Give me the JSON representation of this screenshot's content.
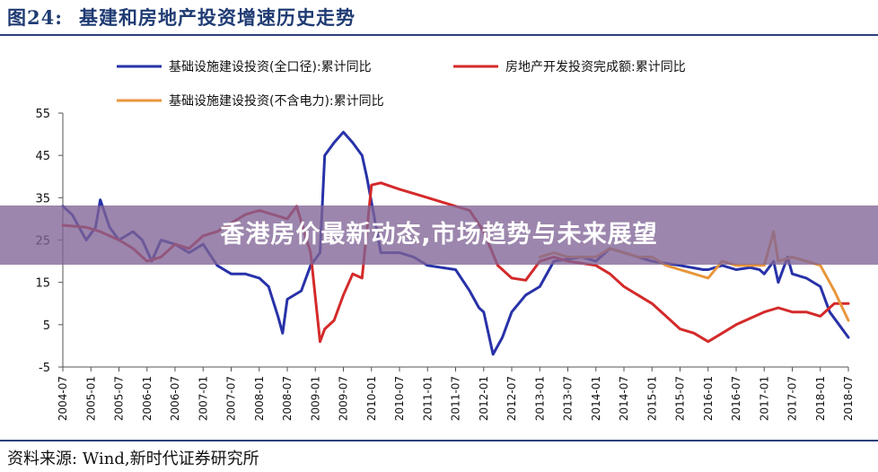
{
  "figure": {
    "number": "图24:",
    "title": "基建和房地产投资增速历史走势",
    "source": "资料来源:  Wind,新时代证券研究所"
  },
  "overlay": {
    "headline": "香港房价最新动态,市场趋势与未来展望"
  },
  "chart_data": {
    "type": "line",
    "title": "基建和房地产投资增速历史走势",
    "xlabel": "",
    "ylabel": "",
    "ylim": [
      -5,
      55
    ],
    "yticks": [
      -5,
      5,
      15,
      25,
      35,
      45,
      55
    ],
    "xticks": [
      "2004-07",
      "2005-01",
      "2005-07",
      "2006-01",
      "2006-07",
      "2007-01",
      "2007-07",
      "2008-01",
      "2008-07",
      "2009-01",
      "2009-07",
      "2010-01",
      "2010-07",
      "2011-01",
      "2011-07",
      "2012-01",
      "2012-07",
      "2013-01",
      "2013-07",
      "2014-01",
      "2014-07",
      "2015-01",
      "2015-07",
      "2016-01",
      "2016-07",
      "2017-01",
      "2017-07",
      "2018-01",
      "2018-07"
    ],
    "grid": false,
    "legend_position": "top",
    "series": [
      {
        "name": "基础设施建设投资(全口径):累计同比",
        "color": "#2832a8",
        "points": [
          [
            "2004-07",
            33
          ],
          [
            "2004-09",
            31
          ],
          [
            "2004-12",
            25
          ],
          [
            "2005-02",
            28
          ],
          [
            "2005-03",
            34.5
          ],
          [
            "2005-05",
            28
          ],
          [
            "2005-07",
            25
          ],
          [
            "2005-10",
            27
          ],
          [
            "2005-12",
            25
          ],
          [
            "2006-02",
            20
          ],
          [
            "2006-04",
            25
          ],
          [
            "2006-07",
            24
          ],
          [
            "2006-10",
            22
          ],
          [
            "2007-01",
            24
          ],
          [
            "2007-04",
            19
          ],
          [
            "2007-07",
            17
          ],
          [
            "2007-10",
            17
          ],
          [
            "2008-01",
            16
          ],
          [
            "2008-03",
            14
          ],
          [
            "2008-05",
            7
          ],
          [
            "2008-06",
            3
          ],
          [
            "2008-07",
            11
          ],
          [
            "2008-10",
            13
          ],
          [
            "2008-12",
            19
          ],
          [
            "2009-02",
            22
          ],
          [
            "2009-03",
            45
          ],
          [
            "2009-05",
            48
          ],
          [
            "2009-07",
            50.5
          ],
          [
            "2009-09",
            48
          ],
          [
            "2009-11",
            45
          ],
          [
            "2009-12",
            40
          ],
          [
            "2010-02",
            28
          ],
          [
            "2010-03",
            22
          ],
          [
            "2010-07",
            22
          ],
          [
            "2010-10",
            21
          ],
          [
            "2011-01",
            19
          ],
          [
            "2011-07",
            18
          ],
          [
            "2011-10",
            13
          ],
          [
            "2011-12",
            9
          ],
          [
            "2012-01",
            8
          ],
          [
            "2012-03",
            -2
          ],
          [
            "2012-05",
            2
          ],
          [
            "2012-07",
            8
          ],
          [
            "2012-10",
            12
          ],
          [
            "2013-01",
            14
          ],
          [
            "2013-04",
            20
          ],
          [
            "2013-07",
            20.5
          ],
          [
            "2013-10",
            21
          ],
          [
            "2014-01",
            20
          ],
          [
            "2014-04",
            23
          ],
          [
            "2014-07",
            22
          ],
          [
            "2014-10",
            21
          ],
          [
            "2015-01",
            20
          ],
          [
            "2015-07",
            19
          ],
          [
            "2015-12",
            18
          ],
          [
            "2016-01",
            18
          ],
          [
            "2016-04",
            19
          ],
          [
            "2016-07",
            18
          ],
          [
            "2016-10",
            18.5
          ],
          [
            "2016-12",
            18
          ],
          [
            "2017-01",
            17
          ],
          [
            "2017-03",
            20
          ],
          [
            "2017-04",
            15
          ],
          [
            "2017-06",
            21
          ],
          [
            "2017-07",
            17
          ],
          [
            "2017-10",
            16
          ],
          [
            "2018-01",
            14
          ],
          [
            "2018-03",
            8
          ],
          [
            "2018-05",
            5
          ],
          [
            "2018-07",
            2
          ]
        ]
      },
      {
        "name": "房地产开发投资完成额:累计同比",
        "color": "#d42a2a",
        "points": [
          [
            "2004-07",
            28.5
          ],
          [
            "2004-12",
            28
          ],
          [
            "2005-03",
            27
          ],
          [
            "2005-07",
            25
          ],
          [
            "2005-10",
            23
          ],
          [
            "2006-01",
            20
          ],
          [
            "2006-04",
            21
          ],
          [
            "2006-07",
            24
          ],
          [
            "2006-10",
            23
          ],
          [
            "2007-01",
            26
          ],
          [
            "2007-04",
            27
          ],
          [
            "2007-07",
            29
          ],
          [
            "2007-10",
            31
          ],
          [
            "2008-01",
            32
          ],
          [
            "2008-04",
            31
          ],
          [
            "2008-07",
            30
          ],
          [
            "2008-09",
            33
          ],
          [
            "2008-12",
            22
          ],
          [
            "2009-02",
            1
          ],
          [
            "2009-03",
            4
          ],
          [
            "2009-05",
            6
          ],
          [
            "2009-07",
            12
          ],
          [
            "2009-09",
            17
          ],
          [
            "2009-11",
            16
          ],
          [
            "2010-01",
            38
          ],
          [
            "2010-03",
            38.5
          ],
          [
            "2010-07",
            37
          ],
          [
            "2010-10",
            36
          ],
          [
            "2011-01",
            35
          ],
          [
            "2011-04",
            34
          ],
          [
            "2011-07",
            33
          ],
          [
            "2011-10",
            32
          ],
          [
            "2012-01",
            27
          ],
          [
            "2012-04",
            19
          ],
          [
            "2012-07",
            16
          ],
          [
            "2012-10",
            15.5
          ],
          [
            "2013-01",
            20
          ],
          [
            "2013-04",
            21
          ],
          [
            "2013-07",
            20
          ],
          [
            "2013-10",
            19.5
          ],
          [
            "2014-01",
            19
          ],
          [
            "2014-04",
            17
          ],
          [
            "2014-07",
            14
          ],
          [
            "2014-10",
            12
          ],
          [
            "2015-01",
            10
          ],
          [
            "2015-04",
            7
          ],
          [
            "2015-07",
            4
          ],
          [
            "2015-10",
            3
          ],
          [
            "2016-01",
            1
          ],
          [
            "2016-04",
            3
          ],
          [
            "2016-07",
            5
          ],
          [
            "2016-10",
            6.5
          ],
          [
            "2017-01",
            8
          ],
          [
            "2017-04",
            9
          ],
          [
            "2017-07",
            8
          ],
          [
            "2017-10",
            8
          ],
          [
            "2018-01",
            7
          ],
          [
            "2018-04",
            10
          ],
          [
            "2018-07",
            10
          ]
        ]
      },
      {
        "name": "基础设施建设投资(不含电力):累计同比",
        "color": "#e8963c",
        "points": [
          [
            "2013-01",
            21
          ],
          [
            "2013-04",
            22
          ],
          [
            "2013-07",
            21
          ],
          [
            "2013-10",
            21
          ],
          [
            "2014-01",
            21
          ],
          [
            "2014-04",
            23
          ],
          [
            "2014-07",
            22
          ],
          [
            "2014-10",
            21
          ],
          [
            "2015-01",
            21
          ],
          [
            "2015-04",
            19
          ],
          [
            "2015-07",
            18
          ],
          [
            "2015-10",
            17
          ],
          [
            "2016-01",
            16
          ],
          [
            "2016-04",
            20
          ],
          [
            "2016-07",
            19
          ],
          [
            "2016-10",
            19
          ],
          [
            "2017-01",
            19
          ],
          [
            "2017-03",
            27
          ],
          [
            "2017-04",
            20
          ],
          [
            "2017-07",
            21
          ],
          [
            "2017-10",
            20
          ],
          [
            "2018-01",
            19
          ],
          [
            "2018-04",
            13
          ],
          [
            "2018-07",
            6
          ]
        ]
      }
    ]
  }
}
